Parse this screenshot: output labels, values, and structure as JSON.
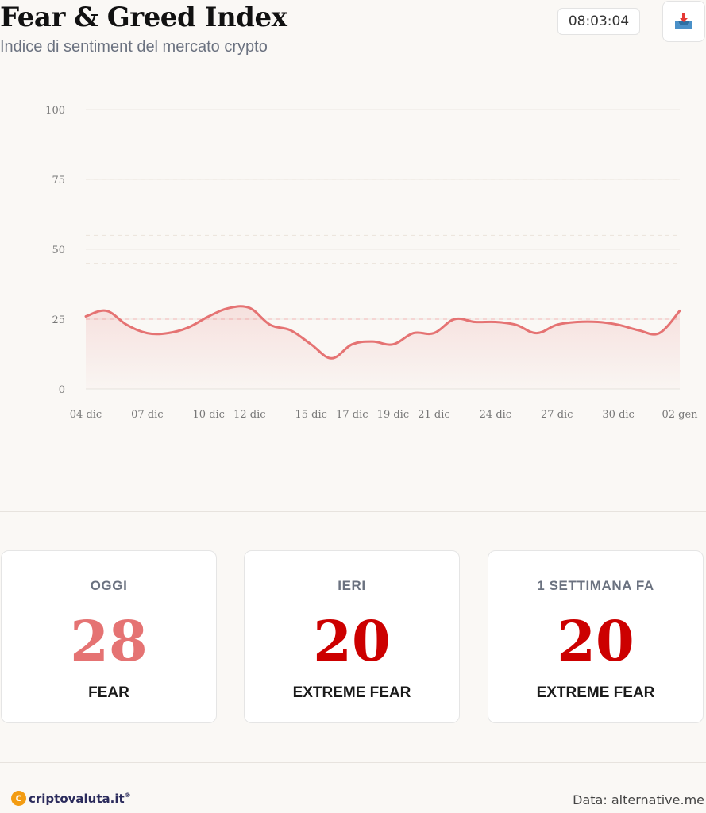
{
  "header": {
    "title": "Fear & Greed Index",
    "subtitle": "Indice di sentiment del mercato crypto",
    "time": "08:03:04",
    "download_icon": "download-tray-icon"
  },
  "chart_data": {
    "type": "area",
    "title": "",
    "xlabel": "",
    "ylabel": "",
    "ylim": [
      0,
      100
    ],
    "y_ticks": [
      "0",
      "25",
      "50",
      "75",
      "100"
    ],
    "x_tick_labels": [
      "04 dic",
      "07 dic",
      "10 dic",
      "12 dic",
      "15 dic",
      "17 dic",
      "19 dic",
      "21 dic",
      "24 dic",
      "27 dic",
      "30 dic",
      "02 gen"
    ],
    "x": [
      "04 dic",
      "05 dic",
      "06 dic",
      "07 dic",
      "08 dic",
      "09 dic",
      "10 dic",
      "11 dic",
      "12 dic",
      "13 dic",
      "14 dic",
      "15 dic",
      "16 dic",
      "17 dic",
      "18 dic",
      "19 dic",
      "20 dic",
      "21 dic",
      "22 dic",
      "23 dic",
      "24 dic",
      "25 dic",
      "26 dic",
      "27 dic",
      "28 dic",
      "29 dic",
      "30 dic",
      "31 dic",
      "01 gen",
      "02 gen"
    ],
    "series": [
      {
        "values": [
          26,
          28,
          23,
          20,
          20,
          22,
          26,
          29,
          29,
          23,
          21,
          16,
          11,
          16,
          17,
          16,
          20,
          20,
          25,
          24,
          24,
          23,
          20,
          23,
          24,
          24,
          23,
          21,
          20,
          28
        ]
      }
    ],
    "reference_lines": [
      25,
      45,
      55,
      75
    ],
    "grid": true,
    "line_color": "#e57373"
  },
  "cards": [
    {
      "label": "OGGI",
      "value": "28",
      "classification": "FEAR",
      "color": "#e57373"
    },
    {
      "label": "IERI",
      "value": "20",
      "classification": "EXTREME FEAR",
      "color": "#cc0000"
    },
    {
      "label": "1 SETTIMANA FA",
      "value": "20",
      "classification": "EXTREME FEAR",
      "color": "#cc0000"
    }
  ],
  "footer": {
    "logo_letter": "c",
    "logo_text": "criptovaluta.it",
    "logo_mark": "®",
    "source": "Data: alternative.me"
  }
}
